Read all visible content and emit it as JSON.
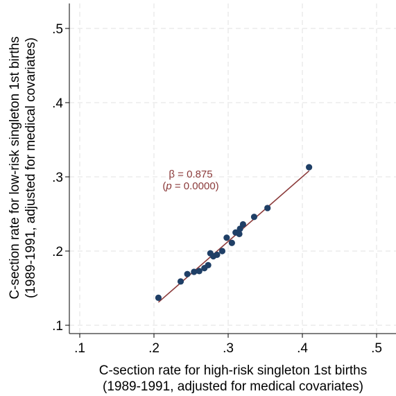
{
  "chart_data": {
    "type": "scatter",
    "title": "",
    "xlabel_line1": "C-section rate for high-risk singleton 1st births",
    "xlabel_line2": "(1989-1991, adjusted for medical covariates)",
    "ylabel_line1": "C-section rate for low-risk singleton 1st births",
    "ylabel_line2": "(1989-1991, adjusted for medical covariates)",
    "xlim": [
      0.1,
      0.5
    ],
    "ylim": [
      0.1,
      0.5
    ],
    "xticks": [
      0.1,
      0.2,
      0.3,
      0.4,
      0.5
    ],
    "yticks": [
      0.1,
      0.2,
      0.3,
      0.4,
      0.5
    ],
    "xtick_labels": [
      ".1",
      ".2",
      ".3",
      ".4",
      ".5"
    ],
    "ytick_labels": [
      ".1",
      ".2",
      ".3",
      ".4",
      ".5"
    ],
    "grid": true,
    "marker_color": "#1f3f66",
    "line_color": "#8b3a3a",
    "points": [
      {
        "x": 0.206,
        "y": 0.137
      },
      {
        "x": 0.236,
        "y": 0.159
      },
      {
        "x": 0.245,
        "y": 0.169
      },
      {
        "x": 0.254,
        "y": 0.172
      },
      {
        "x": 0.261,
        "y": 0.173
      },
      {
        "x": 0.268,
        "y": 0.177
      },
      {
        "x": 0.273,
        "y": 0.181
      },
      {
        "x": 0.276,
        "y": 0.197
      },
      {
        "x": 0.28,
        "y": 0.193
      },
      {
        "x": 0.285,
        "y": 0.195
      },
      {
        "x": 0.292,
        "y": 0.2
      },
      {
        "x": 0.298,
        "y": 0.218
      },
      {
        "x": 0.305,
        "y": 0.211
      },
      {
        "x": 0.31,
        "y": 0.225
      },
      {
        "x": 0.315,
        "y": 0.223
      },
      {
        "x": 0.316,
        "y": 0.23
      },
      {
        "x": 0.32,
        "y": 0.236
      },
      {
        "x": 0.335,
        "y": 0.246
      },
      {
        "x": 0.353,
        "y": 0.258
      },
      {
        "x": 0.409,
        "y": 0.313
      }
    ],
    "fit_line": {
      "x1": 0.206,
      "y1": 0.131,
      "x2": 0.409,
      "y2": 0.308
    },
    "annotation": {
      "line1": "β = 0.875",
      "line2_open": "(",
      "line2_p": "p",
      "line2_rest": " = 0.0000)"
    }
  }
}
